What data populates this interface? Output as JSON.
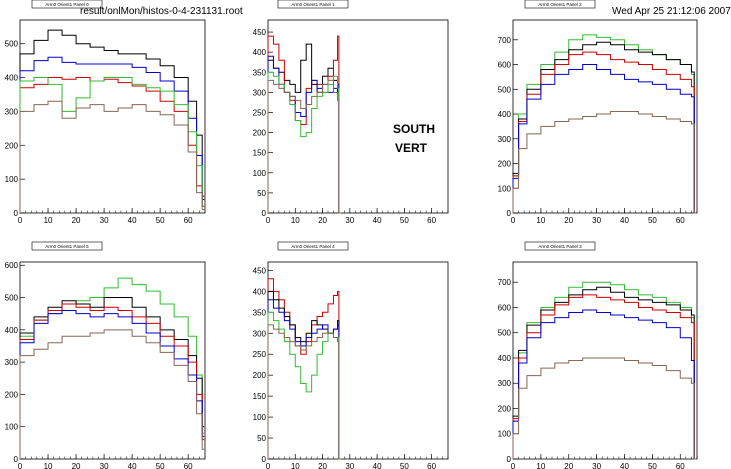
{
  "header": {
    "file_label": "result/onlMon/histos-0-4-231131.root",
    "timestamp": "Wed Apr 25 21:12:06 2007"
  },
  "annotation": {
    "line1": "SOUTH",
    "line2": "VERT"
  },
  "colors": {
    "black": "#000000",
    "red": "#cc0000",
    "blue": "#0000cc",
    "green": "#33bb33",
    "brown": "#886655"
  },
  "chart_data": [
    {
      "type": "line",
      "title": "Arm0 Orient1 Panel 0",
      "xlim": [
        0,
        66
      ],
      "ylim": [
        0,
        570
      ],
      "xticks": [
        0,
        10,
        20,
        30,
        40,
        50,
        60
      ],
      "yticks": [
        0,
        100,
        200,
        300,
        400,
        500
      ],
      "x": [
        0,
        5,
        10,
        15,
        20,
        25,
        30,
        35,
        40,
        45,
        50,
        55,
        60,
        63,
        65
      ],
      "series": [
        {
          "color": "black",
          "values": [
            470,
            510,
            540,
            525,
            500,
            490,
            480,
            470,
            470,
            455,
            435,
            400,
            330,
            230,
            50
          ]
        },
        {
          "color": "blue",
          "values": [
            420,
            450,
            460,
            445,
            440,
            440,
            440,
            440,
            430,
            415,
            390,
            360,
            280,
            170,
            40
          ]
        },
        {
          "color": "red",
          "values": [
            370,
            380,
            400,
            395,
            400,
            390,
            395,
            385,
            375,
            360,
            330,
            300,
            200,
            80,
            20
          ]
        },
        {
          "color": "green",
          "values": [
            390,
            400,
            380,
            300,
            340,
            390,
            400,
            400,
            380,
            370,
            360,
            320,
            240,
            140,
            20
          ]
        },
        {
          "color": "brown",
          "values": [
            300,
            320,
            330,
            280,
            310,
            320,
            300,
            310,
            320,
            300,
            290,
            260,
            180,
            60,
            10
          ]
        }
      ]
    },
    {
      "type": "line",
      "title": "Arm0 Orient1 Panel 1",
      "xlim": [
        0,
        66
      ],
      "ylim": [
        0,
        480
      ],
      "xticks": [
        0,
        10,
        20,
        30,
        40,
        50,
        60
      ],
      "yticks": [
        0,
        50,
        100,
        150,
        200,
        250,
        300,
        350,
        400,
        450
      ],
      "x": [
        0,
        2,
        4,
        6,
        8,
        10,
        12,
        14,
        16,
        18,
        20,
        22,
        24,
        25.5,
        26
      ],
      "series": [
        {
          "color": "black",
          "values": [
            380,
            360,
            350,
            330,
            320,
            300,
            380,
            420,
            320,
            300,
            340,
            360,
            330,
            300,
            0
          ]
        },
        {
          "color": "red",
          "values": [
            440,
            420,
            380,
            300,
            280,
            230,
            220,
            310,
            330,
            320,
            300,
            340,
            380,
            440,
            0
          ]
        },
        {
          "color": "blue",
          "values": [
            390,
            360,
            320,
            300,
            290,
            250,
            240,
            300,
            330,
            310,
            320,
            300,
            310,
            320,
            0
          ]
        },
        {
          "color": "green",
          "values": [
            350,
            340,
            320,
            300,
            270,
            230,
            190,
            200,
            260,
            290,
            300,
            320,
            340,
            310,
            0
          ]
        },
        {
          "color": "brown",
          "values": [
            330,
            320,
            310,
            300,
            290,
            280,
            260,
            270,
            290,
            300,
            320,
            330,
            300,
            280,
            0
          ]
        }
      ]
    },
    {
      "type": "line",
      "title": "Arm0 Orient1 Panel 2",
      "xlim": [
        0,
        66
      ],
      "ylim": [
        0,
        780
      ],
      "xticks": [
        0,
        10,
        20,
        30,
        40,
        50,
        60
      ],
      "yticks": [
        0,
        100,
        200,
        300,
        400,
        500,
        600,
        700
      ],
      "x": [
        0,
        2,
        5,
        10,
        15,
        20,
        25,
        30,
        35,
        40,
        45,
        50,
        55,
        60,
        64,
        65
      ],
      "series": [
        {
          "color": "green",
          "values": [
            150,
            400,
            520,
            600,
            650,
            700,
            720,
            710,
            700,
            680,
            660,
            640,
            620,
            600,
            560,
            0
          ]
        },
        {
          "color": "black",
          "values": [
            160,
            380,
            500,
            580,
            620,
            660,
            680,
            690,
            680,
            660,
            650,
            640,
            620,
            600,
            570,
            0
          ]
        },
        {
          "color": "red",
          "values": [
            150,
            370,
            480,
            560,
            600,
            640,
            650,
            640,
            620,
            610,
            600,
            580,
            560,
            540,
            510,
            0
          ]
        },
        {
          "color": "blue",
          "values": [
            140,
            360,
            460,
            520,
            560,
            580,
            600,
            580,
            560,
            540,
            530,
            520,
            500,
            480,
            470,
            0
          ]
        },
        {
          "color": "brown",
          "values": [
            100,
            260,
            320,
            350,
            370,
            380,
            390,
            400,
            410,
            410,
            400,
            390,
            380,
            370,
            360,
            0
          ]
        }
      ]
    },
    {
      "type": "line",
      "title": "Arm0 Orient1 Panel 5",
      "xlim": [
        0,
        66
      ],
      "ylim": [
        0,
        610
      ],
      "xticks": [
        0,
        10,
        20,
        30,
        40,
        50,
        60
      ],
      "yticks": [
        0,
        100,
        200,
        300,
        400,
        500,
        600
      ],
      "x": [
        0,
        5,
        10,
        15,
        20,
        25,
        30,
        35,
        40,
        45,
        50,
        55,
        60,
        63,
        65
      ],
      "series": [
        {
          "color": "green",
          "values": [
            380,
            430,
            450,
            480,
            490,
            500,
            530,
            560,
            540,
            520,
            480,
            440,
            380,
            260,
            80
          ]
        },
        {
          "color": "black",
          "values": [
            390,
            440,
            470,
            490,
            480,
            470,
            500,
            500,
            470,
            440,
            400,
            370,
            320,
            250,
            100
          ]
        },
        {
          "color": "red",
          "values": [
            370,
            430,
            460,
            480,
            470,
            460,
            470,
            460,
            440,
            420,
            380,
            350,
            300,
            200,
            60
          ]
        },
        {
          "color": "blue",
          "values": [
            360,
            420,
            450,
            460,
            450,
            440,
            450,
            440,
            420,
            390,
            350,
            310,
            260,
            180,
            70
          ]
        },
        {
          "color": "brown",
          "values": [
            320,
            340,
            360,
            380,
            380,
            390,
            400,
            400,
            380,
            360,
            330,
            290,
            240,
            140,
            30
          ]
        }
      ]
    },
    {
      "type": "line",
      "title": "Arm0 Orient1 Panel 4",
      "xlim": [
        0,
        66
      ],
      "ylim": [
        0,
        470
      ],
      "xticks": [
        0,
        10,
        20,
        30,
        40,
        50,
        60
      ],
      "yticks": [
        0,
        50,
        100,
        150,
        200,
        250,
        300,
        350,
        400,
        450
      ],
      "x": [
        0,
        2,
        4,
        6,
        8,
        10,
        12,
        14,
        16,
        18,
        20,
        22,
        24,
        25.5,
        26
      ],
      "series": [
        {
          "color": "red",
          "values": [
            430,
            400,
            380,
            350,
            320,
            270,
            250,
            280,
            320,
            340,
            350,
            370,
            390,
            400,
            0
          ]
        },
        {
          "color": "black",
          "values": [
            400,
            380,
            360,
            340,
            320,
            290,
            280,
            300,
            330,
            320,
            310,
            300,
            310,
            330,
            0
          ]
        },
        {
          "color": "blue",
          "values": [
            380,
            360,
            350,
            330,
            310,
            280,
            270,
            290,
            300,
            310,
            320,
            300,
            310,
            320,
            0
          ]
        },
        {
          "color": "green",
          "values": [
            350,
            330,
            310,
            280,
            250,
            220,
            180,
            160,
            200,
            250,
            280,
            300,
            290,
            290,
            0
          ]
        },
        {
          "color": "brown",
          "values": [
            320,
            310,
            300,
            290,
            280,
            270,
            260,
            270,
            280,
            290,
            300,
            300,
            290,
            280,
            0
          ]
        }
      ]
    },
    {
      "type": "line",
      "title": "Arm0 Orient1 Panel 3",
      "xlim": [
        0,
        66
      ],
      "ylim": [
        0,
        780
      ],
      "xticks": [
        0,
        10,
        20,
        30,
        40,
        50,
        60
      ],
      "yticks": [
        0,
        100,
        200,
        300,
        400,
        500,
        600,
        700
      ],
      "x": [
        0,
        2,
        5,
        10,
        15,
        20,
        25,
        30,
        35,
        40,
        45,
        50,
        55,
        60,
        64,
        65
      ],
      "series": [
        {
          "color": "green",
          "values": [
            150,
            420,
            540,
            600,
            640,
            680,
            700,
            700,
            690,
            670,
            650,
            640,
            620,
            600,
            560,
            0
          ]
        },
        {
          "color": "black",
          "values": [
            170,
            430,
            530,
            590,
            620,
            650,
            670,
            680,
            660,
            640,
            630,
            620,
            610,
            590,
            570,
            0
          ]
        },
        {
          "color": "red",
          "values": [
            160,
            400,
            500,
            570,
            610,
            640,
            650,
            640,
            630,
            620,
            600,
            590,
            580,
            560,
            540,
            0
          ]
        },
        {
          "color": "blue",
          "values": [
            150,
            380,
            480,
            540,
            560,
            580,
            590,
            580,
            570,
            560,
            550,
            540,
            520,
            480,
            390,
            0
          ]
        },
        {
          "color": "brown",
          "values": [
            100,
            280,
            330,
            360,
            380,
            390,
            400,
            400,
            400,
            390,
            380,
            370,
            350,
            320,
            300,
            0
          ]
        }
      ]
    }
  ]
}
